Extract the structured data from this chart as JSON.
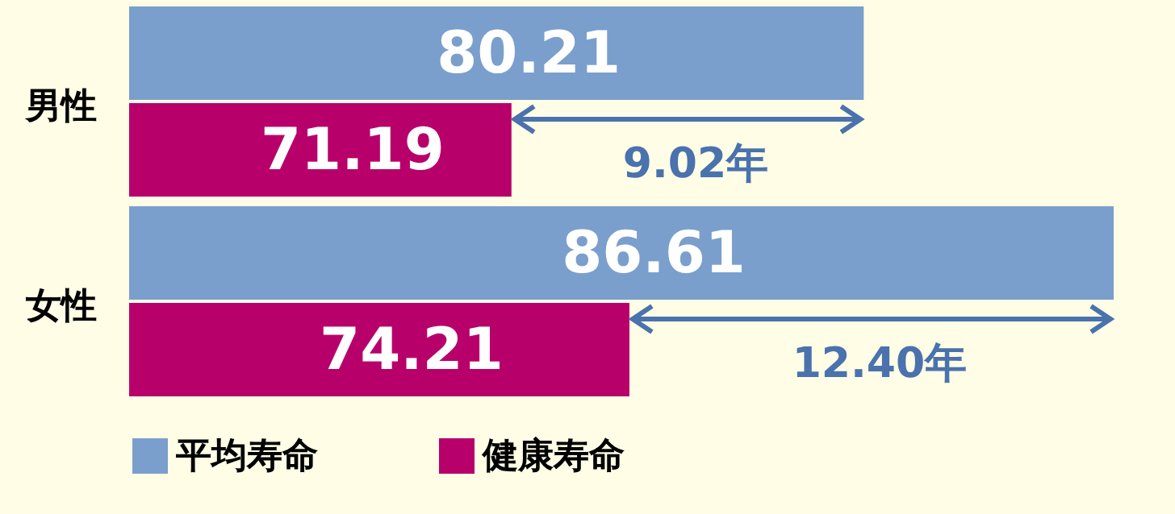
{
  "chart_data": {
    "type": "bar",
    "orientation": "horizontal",
    "categories": [
      "男性",
      "女性"
    ],
    "series": [
      {
        "name": "平均寿命",
        "color": "#7b9fcc",
        "values": [
          80.21,
          86.61
        ]
      },
      {
        "name": "健康寿命",
        "color": "#b8006b",
        "values": [
          71.19,
          74.21
        ]
      }
    ],
    "xlim": [
      61.4,
      86.61
    ],
    "tick_labels": "y",
    "data_labels": true,
    "legend": "bottom left",
    "annotations": [
      "9.02年",
      "12.40年"
    ]
  }
}
